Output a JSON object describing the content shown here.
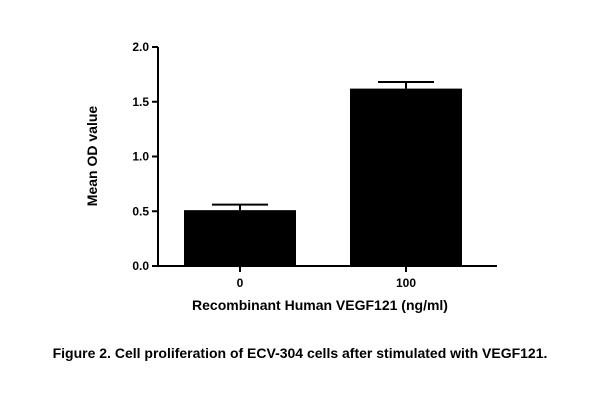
{
  "chart_data": {
    "type": "bar",
    "categories": [
      "0",
      "100"
    ],
    "values": [
      0.51,
      1.62
    ],
    "errors": [
      0.05,
      0.06
    ],
    "xlabel": "Recombinant Human VEGF121 (ng/ml)",
    "ylabel": "Mean OD value",
    "ylim": [
      0,
      2.0
    ],
    "yticks": [
      0.0,
      0.5,
      1.0,
      1.5,
      2.0
    ],
    "ytick_labels": [
      "0.0",
      "0.5",
      "1.0",
      "1.5",
      "2.0"
    ],
    "grid": false,
    "colors": {
      "bar": "#000000",
      "axis": "#000000",
      "text": "#000000"
    }
  },
  "caption": "Figure 2. Cell proliferation of ECV-304 cells after stimulated with VEGF121."
}
